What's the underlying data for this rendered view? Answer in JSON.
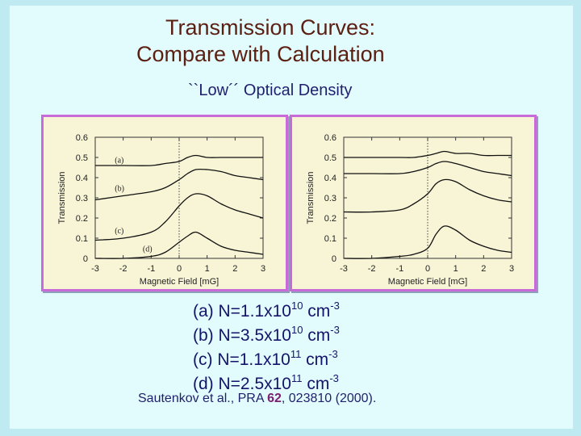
{
  "slide": {
    "title_line1": "Transmission Curves:",
    "title_line2": "Compare with Calculation",
    "subtitle": "``Low´´ Optical Density",
    "colors": {
      "title": "#5b2012",
      "subtitle": "#1f1f6d",
      "panel_border": "#c86bd8",
      "panel_bg": "#f8f5d6",
      "background": "#e2fbfd"
    }
  },
  "legend": [
    {
      "prefix": "(a) N=1.1x10",
      "exp": "10",
      "unit": " cm",
      "unit_exp": "-3"
    },
    {
      "prefix": "(b) N=3.5x10",
      "exp": "10",
      "unit": " cm",
      "unit_exp": "-3"
    },
    {
      "prefix": "(c) N=1.1x10",
      "exp": "11",
      "unit": " cm",
      "unit_exp": "-3"
    },
    {
      "prefix": "(d) N=2.5x10",
      "exp": "11",
      "unit": " cm",
      "unit_exp": "-3"
    }
  ],
  "citation": {
    "prefix": "Sautenkov et al., PRA ",
    "volume": "62",
    "suffix": ", 023810 (2000)."
  },
  "chart_data": [
    {
      "type": "line",
      "panel": "experiment",
      "xlabel": "Magnetic Field [mG]",
      "ylabel": "Transmission",
      "xlim": [
        -3,
        3
      ],
      "ylim": [
        0,
        0.6
      ],
      "xticks": [
        "-3",
        "-2",
        "-1",
        "0",
        "1",
        "2",
        "3"
      ],
      "yticks": [
        "0",
        "0.1",
        "0.2",
        "0.3",
        "0.4",
        "0.5",
        "0.6"
      ],
      "vline_x": 0,
      "series": [
        {
          "name": "(a)",
          "label_xy": [
            -2.3,
            0.49
          ],
          "x": [
            -3,
            -2,
            -1,
            -0.5,
            0,
            0.3,
            0.6,
            1,
            1.5,
            2,
            2.5,
            3
          ],
          "y": [
            0.46,
            0.46,
            0.46,
            0.47,
            0.48,
            0.5,
            0.51,
            0.5,
            0.5,
            0.5,
            0.5,
            0.5
          ]
        },
        {
          "name": "(b)",
          "label_xy": [
            -2.3,
            0.35
          ],
          "x": [
            -3,
            -2,
            -1,
            -0.5,
            0,
            0.3,
            0.6,
            1,
            1.5,
            2,
            2.5,
            3
          ],
          "y": [
            0.29,
            0.31,
            0.33,
            0.35,
            0.39,
            0.42,
            0.44,
            0.44,
            0.43,
            0.41,
            0.4,
            0.39
          ]
        },
        {
          "name": "(c)",
          "label_xy": [
            -2.3,
            0.14
          ],
          "x": [
            -3,
            -2,
            -1,
            -0.5,
            0,
            0.3,
            0.6,
            1,
            1.5,
            2,
            2.5,
            3
          ],
          "y": [
            0.09,
            0.1,
            0.13,
            0.18,
            0.26,
            0.3,
            0.32,
            0.31,
            0.27,
            0.24,
            0.22,
            0.2
          ]
        },
        {
          "name": "(d)",
          "label_xy": [
            -1.3,
            0.05
          ],
          "x": [
            -3,
            -2,
            -1,
            -0.5,
            0,
            0.3,
            0.6,
            1,
            1.5,
            2,
            2.5,
            3
          ],
          "y": [
            0.0,
            0.0,
            0.01,
            0.03,
            0.08,
            0.11,
            0.13,
            0.1,
            0.06,
            0.04,
            0.03,
            0.02
          ]
        }
      ]
    },
    {
      "type": "line",
      "panel": "calculation",
      "xlabel": "Magnetic Field [mG]",
      "ylabel": "Transmission",
      "xlim": [
        -3,
        3
      ],
      "ylim": [
        0,
        0.6
      ],
      "xticks": [
        "-3",
        "-2",
        "-1",
        "0",
        "1",
        "2",
        "3"
      ],
      "yticks": [
        "0",
        "0.1",
        "0.2",
        "0.3",
        "0.4",
        "0.5",
        "0.6"
      ],
      "vline_x": 0,
      "series": [
        {
          "x": [
            -3,
            -2,
            -1,
            -0.5,
            0,
            0.3,
            0.6,
            1,
            1.5,
            2,
            2.5,
            3
          ],
          "y": [
            0.5,
            0.5,
            0.5,
            0.5,
            0.51,
            0.52,
            0.53,
            0.52,
            0.52,
            0.51,
            0.51,
            0.51
          ]
        },
        {
          "x": [
            -3,
            -2,
            -1,
            -0.5,
            0,
            0.3,
            0.6,
            1,
            1.5,
            2,
            2.5,
            3
          ],
          "y": [
            0.42,
            0.42,
            0.42,
            0.43,
            0.45,
            0.47,
            0.48,
            0.47,
            0.45,
            0.43,
            0.42,
            0.41
          ]
        },
        {
          "x": [
            -3,
            -2,
            -1,
            -0.5,
            0,
            0.3,
            0.6,
            1,
            1.5,
            2,
            2.5,
            3
          ],
          "y": [
            0.23,
            0.23,
            0.24,
            0.27,
            0.32,
            0.37,
            0.39,
            0.38,
            0.34,
            0.31,
            0.29,
            0.28
          ]
        },
        {
          "x": [
            -3,
            -2,
            -1,
            -0.5,
            0,
            0.3,
            0.6,
            1,
            1.5,
            2,
            2.5,
            3
          ],
          "y": [
            0.0,
            0.0,
            0.01,
            0.02,
            0.05,
            0.12,
            0.16,
            0.14,
            0.09,
            0.06,
            0.04,
            0.03
          ]
        }
      ]
    }
  ]
}
